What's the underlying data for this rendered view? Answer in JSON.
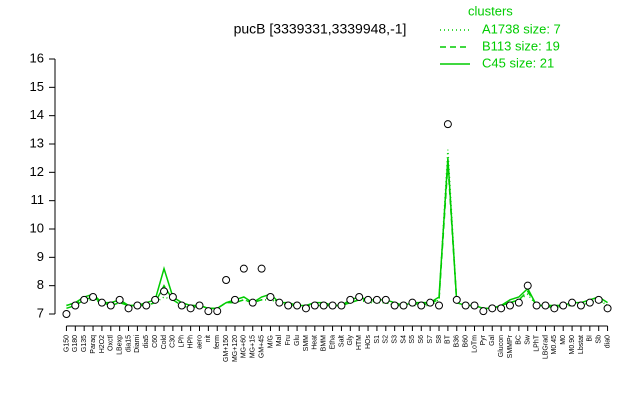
{
  "chart_data": {
    "type": "line",
    "title": "pucB [3339331,3339948,-1]",
    "legend_title": "clusters",
    "legend_position": "top-right",
    "categories": [
      "G150",
      "G180",
      "G135",
      "Paraq",
      "H2O2",
      "Oxctl",
      "LBexp",
      "dia15",
      "Diami",
      "dia5",
      "C60",
      "Cold",
      "C30",
      "LPh",
      "HPh",
      "aero",
      "nit",
      "ferm",
      "GM+150",
      "MG+120",
      "MG+60",
      "MG+15",
      "GM+45",
      "M/G",
      "Mal",
      "Fru",
      "Glu",
      "SMM",
      "Heat",
      "BMM",
      "Etha",
      "Salt",
      "Gly",
      "HTM",
      "HOs",
      "S1",
      "S2",
      "S3",
      "S4",
      "S5",
      "S6",
      "S7",
      "S8",
      "BT",
      "B36",
      "B60",
      "LoTm",
      "Pyr",
      "Gal",
      "Glucon",
      "SMMPr",
      "BC",
      "Sw",
      "LPhT",
      "LBGrad",
      "M0.45",
      "M0",
      "M0.90",
      "Lbstat",
      "BI",
      "Sb",
      "dia0"
    ],
    "points": [
      7.0,
      7.3,
      7.5,
      7.6,
      7.4,
      7.3,
      7.5,
      7.2,
      7.3,
      7.3,
      7.5,
      7.8,
      7.6,
      7.3,
      7.2,
      7.3,
      7.1,
      7.1,
      8.2,
      7.5,
      8.6,
      7.4,
      8.6,
      7.6,
      7.4,
      7.3,
      7.3,
      7.2,
      7.3,
      7.3,
      7.3,
      7.3,
      7.5,
      7.6,
      7.5,
      7.5,
      7.5,
      7.3,
      7.3,
      7.4,
      7.3,
      7.4,
      7.3,
      13.7,
      7.5,
      7.3,
      7.3,
      7.1,
      7.2,
      7.2,
      7.3,
      7.4,
      8.0,
      7.3,
      7.3,
      7.2,
      7.3,
      7.4,
      7.3,
      7.4,
      7.5,
      7.2
    ],
    "series": [
      {
        "name": "A1738 size: 7",
        "color": "#00cc00",
        "dash": "1,3",
        "values": [
          7.3,
          7.4,
          7.5,
          7.5,
          7.4,
          7.4,
          7.4,
          7.3,
          7.3,
          7.3,
          7.4,
          7.6,
          7.5,
          7.3,
          7.3,
          7.3,
          7.2,
          7.2,
          7.4,
          7.4,
          7.5,
          7.4,
          7.5,
          7.5,
          7.4,
          7.3,
          7.3,
          7.3,
          7.3,
          7.3,
          7.3,
          7.3,
          7.4,
          7.5,
          7.4,
          7.4,
          7.4,
          7.3,
          7.3,
          7.3,
          7.3,
          7.3,
          7.5,
          12.8,
          7.4,
          7.3,
          7.3,
          7.2,
          7.2,
          7.3,
          7.4,
          7.5,
          7.7,
          7.3,
          7.3,
          7.3,
          7.3,
          7.3,
          7.3,
          7.4,
          7.5,
          7.3
        ]
      },
      {
        "name": "B113 size: 19",
        "color": "#00cc00",
        "dash": "6,4",
        "values": [
          7.2,
          7.3,
          7.5,
          7.6,
          7.4,
          7.3,
          7.4,
          7.3,
          7.3,
          7.3,
          7.4,
          8.0,
          7.5,
          7.3,
          7.2,
          7.3,
          7.2,
          7.2,
          7.4,
          7.4,
          7.5,
          7.4,
          7.5,
          7.6,
          7.4,
          7.3,
          7.3,
          7.3,
          7.3,
          7.3,
          7.3,
          7.3,
          7.4,
          7.5,
          7.5,
          7.4,
          7.4,
          7.3,
          7.3,
          7.4,
          7.3,
          7.4,
          7.5,
          12.3,
          7.4,
          7.3,
          7.3,
          7.2,
          7.2,
          7.3,
          7.4,
          7.5,
          7.8,
          7.3,
          7.3,
          7.2,
          7.3,
          7.3,
          7.3,
          7.4,
          7.5,
          7.3
        ]
      },
      {
        "name": "C45 size: 21",
        "color": "#00cc00",
        "dash": "none",
        "values": [
          7.3,
          7.4,
          7.6,
          7.7,
          7.4,
          7.4,
          7.5,
          7.3,
          7.3,
          7.4,
          7.5,
          8.6,
          7.6,
          7.4,
          7.3,
          7.3,
          7.2,
          7.2,
          7.4,
          7.5,
          7.6,
          7.4,
          7.6,
          7.7,
          7.4,
          7.4,
          7.3,
          7.3,
          7.4,
          7.4,
          7.3,
          7.3,
          7.5,
          7.6,
          7.5,
          7.5,
          7.5,
          7.4,
          7.3,
          7.4,
          7.4,
          7.4,
          7.6,
          12.5,
          7.4,
          7.3,
          7.3,
          7.2,
          7.2,
          7.3,
          7.5,
          7.6,
          7.9,
          7.3,
          7.3,
          7.3,
          7.3,
          7.4,
          7.4,
          7.5,
          7.6,
          7.4
        ]
      }
    ],
    "ylim": [
      7,
      16
    ],
    "yticks": [
      7,
      8,
      9,
      10,
      11,
      12,
      13,
      14,
      15,
      16
    ]
  }
}
